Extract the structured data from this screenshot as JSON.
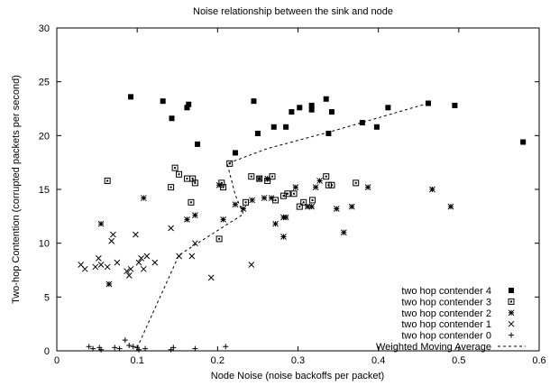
{
  "chart_data": {
    "type": "scatter",
    "title": "Noise relationship between the sink and node",
    "xlabel": "Node Noise (noise backoffs per packet)",
    "ylabel": "Two-hop Contention (corrupted packets per second)",
    "xlim": [
      0,
      0.6
    ],
    "ylim": [
      0,
      30
    ],
    "xticks": [
      0,
      0.1,
      0.2,
      0.3,
      0.4,
      0.5,
      0.6
    ],
    "xtick_labels": [
      "0",
      "0.1",
      "0.2",
      "0.3",
      "0.4",
      "0.5",
      "0.6"
    ],
    "yticks": [
      0,
      5,
      10,
      15,
      20,
      25,
      30
    ],
    "ytick_labels": [
      "0",
      "5",
      "10",
      "15",
      "20",
      "25",
      "30"
    ],
    "grid": false,
    "legend_position": "bottom-right",
    "series": [
      {
        "name": "two hop contender 4",
        "marker": "filled-square",
        "points": [
          [
            0.092,
            23.6
          ],
          [
            0.132,
            23.2
          ],
          [
            0.143,
            21.6
          ],
          [
            0.162,
            22.6
          ],
          [
            0.164,
            22.9
          ],
          [
            0.175,
            19.2
          ],
          [
            0.222,
            18.4
          ],
          [
            0.245,
            23.2
          ],
          [
            0.25,
            20.2
          ],
          [
            0.27,
            20.8
          ],
          [
            0.285,
            20.8
          ],
          [
            0.292,
            22.2
          ],
          [
            0.302,
            22.6
          ],
          [
            0.317,
            22.4
          ],
          [
            0.317,
            22.8
          ],
          [
            0.335,
            23.4
          ],
          [
            0.338,
            20.2
          ],
          [
            0.342,
            22.2
          ],
          [
            0.38,
            21.2
          ],
          [
            0.398,
            20.8
          ],
          [
            0.412,
            22.6
          ],
          [
            0.462,
            23.0
          ],
          [
            0.495,
            22.8
          ],
          [
            0.58,
            19.4
          ]
        ]
      },
      {
        "name": "two hop contender 3",
        "marker": "open-square",
        "points": [
          [
            0.063,
            15.8
          ],
          [
            0.142,
            15.2
          ],
          [
            0.147,
            17.0
          ],
          [
            0.152,
            16.4
          ],
          [
            0.162,
            16.0
          ],
          [
            0.167,
            13.8
          ],
          [
            0.169,
            16.0
          ],
          [
            0.172,
            15.6
          ],
          [
            0.202,
            10.4
          ],
          [
            0.205,
            15.6
          ],
          [
            0.207,
            15.2
          ],
          [
            0.215,
            17.4
          ],
          [
            0.235,
            13.8
          ],
          [
            0.242,
            16.2
          ],
          [
            0.252,
            16.0
          ],
          [
            0.262,
            15.8
          ],
          [
            0.268,
            16.2
          ],
          [
            0.272,
            14.0
          ],
          [
            0.282,
            14.4
          ],
          [
            0.287,
            14.6
          ],
          [
            0.295,
            14.6
          ],
          [
            0.302,
            13.4
          ],
          [
            0.307,
            13.8
          ],
          [
            0.318,
            14.0
          ],
          [
            0.335,
            16.2
          ],
          [
            0.338,
            15.4
          ],
          [
            0.342,
            15.4
          ],
          [
            0.372,
            15.6
          ]
        ]
      },
      {
        "name": "two hop contender 2",
        "marker": "asterisk",
        "points": [
          [
            0.055,
            11.8
          ],
          [
            0.065,
            6.2
          ],
          [
            0.108,
            14.2
          ],
          [
            0.162,
            12.2
          ],
          [
            0.172,
            12.6
          ],
          [
            0.202,
            15.4
          ],
          [
            0.207,
            12.2
          ],
          [
            0.222,
            13.6
          ],
          [
            0.232,
            13.2
          ],
          [
            0.243,
            14.0
          ],
          [
            0.252,
            16.0
          ],
          [
            0.258,
            14.2
          ],
          [
            0.262,
            16.0
          ],
          [
            0.267,
            14.2
          ],
          [
            0.272,
            11.8
          ],
          [
            0.282,
            10.6
          ],
          [
            0.282,
            12.4
          ],
          [
            0.285,
            12.4
          ],
          [
            0.297,
            15.2
          ],
          [
            0.312,
            13.4
          ],
          [
            0.317,
            13.4
          ],
          [
            0.322,
            15.2
          ],
          [
            0.327,
            15.8
          ],
          [
            0.348,
            13.2
          ],
          [
            0.357,
            11.0
          ],
          [
            0.367,
            13.4
          ],
          [
            0.387,
            15.2
          ],
          [
            0.467,
            15.0
          ],
          [
            0.49,
            13.4
          ]
        ]
      },
      {
        "name": "two hop contender 1",
        "marker": "cross",
        "points": [
          [
            0.03,
            8.0
          ],
          [
            0.035,
            7.6
          ],
          [
            0.048,
            7.8
          ],
          [
            0.052,
            8.6
          ],
          [
            0.055,
            8.0
          ],
          [
            0.063,
            7.8
          ],
          [
            0.068,
            10.2
          ],
          [
            0.07,
            10.8
          ],
          [
            0.075,
            8.2
          ],
          [
            0.087,
            7.4
          ],
          [
            0.09,
            7.0
          ],
          [
            0.092,
            7.6
          ],
          [
            0.098,
            10.8
          ],
          [
            0.102,
            8.2
          ],
          [
            0.105,
            8.6
          ],
          [
            0.108,
            7.6
          ],
          [
            0.112,
            8.8
          ],
          [
            0.122,
            8.2
          ],
          [
            0.142,
            11.4
          ],
          [
            0.152,
            8.8
          ],
          [
            0.168,
            8.8
          ],
          [
            0.172,
            10.0
          ],
          [
            0.192,
            6.8
          ],
          [
            0.242,
            8.0
          ]
        ]
      },
      {
        "name": "two hop contender 0",
        "marker": "plus",
        "points": [
          [
            0.04,
            0.4
          ],
          [
            0.045,
            0.2
          ],
          [
            0.053,
            0.3
          ],
          [
            0.055,
            0.1
          ],
          [
            0.072,
            0.3
          ],
          [
            0.078,
            0.2
          ],
          [
            0.085,
            1.0
          ],
          [
            0.09,
            0.5
          ],
          [
            0.095,
            0.4
          ],
          [
            0.1,
            0.3
          ],
          [
            0.102,
            0.1
          ],
          [
            0.11,
            0.2
          ],
          [
            0.142,
            0.1
          ],
          [
            0.145,
            0.3
          ],
          [
            0.172,
            0.2
          ],
          [
            0.21,
            0.4
          ]
        ]
      }
    ],
    "trend": {
      "name": "Weighted Moving Average",
      "style": "dashed",
      "points": [
        [
          0.1,
          0.3
        ],
        [
          0.152,
          8.9
        ],
        [
          0.232,
          12.7
        ],
        [
          0.222,
          14.5
        ],
        [
          0.212,
          17.4
        ],
        [
          0.262,
          18.8
        ],
        [
          0.342,
          20.4
        ],
        [
          0.462,
          23.0
        ]
      ]
    }
  }
}
